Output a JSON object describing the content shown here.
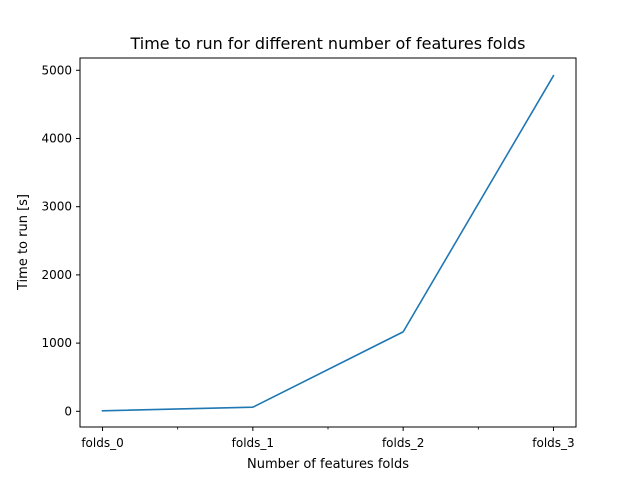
{
  "chart_data": {
    "type": "line",
    "title": "Time to run for different number of features folds",
    "xlabel": "Number of features folds",
    "ylabel": "Time to run [s]",
    "categories": [
      "folds_0",
      "folds_1",
      "folds_2",
      "folds_3"
    ],
    "series": [
      {
        "values": [
          8,
          60,
          1165,
          4920
        ],
        "color": "#1f77b4"
      }
    ],
    "ylim": [
      -230,
      5180
    ],
    "y_ticks": [
      0,
      1000,
      2000,
      3000,
      4000,
      5000
    ],
    "x_minor_ticks": [
      0.5,
      1.5,
      2.5
    ],
    "grid": false,
    "legend": "none"
  }
}
